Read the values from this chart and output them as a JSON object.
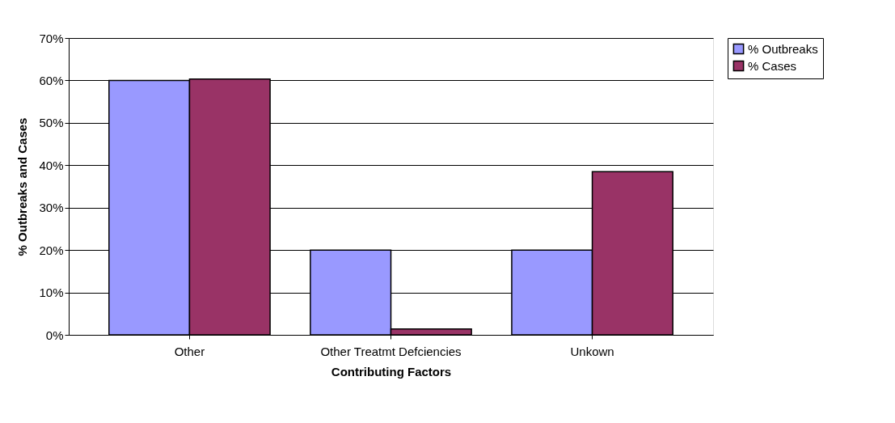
{
  "chart_data": {
    "type": "bar",
    "xlabel": "Contributing Factors",
    "ylabel": "% Outbreaks and Cases",
    "categories": [
      "Other",
      "Other Treatmt Defciencies",
      "Unkown"
    ],
    "series": [
      {
        "name": "% Outbreaks",
        "color": "#9999ff",
        "values": [
          60,
          20,
          20
        ]
      },
      {
        "name": "% Cases",
        "color": "#993366",
        "values": [
          60.3,
          1.4,
          38.5
        ]
      }
    ],
    "ylim": [
      0,
      70
    ],
    "yticks": [
      {
        "value": 0,
        "label": "0%"
      },
      {
        "value": 10,
        "label": "10%"
      },
      {
        "value": 20,
        "label": "20%"
      },
      {
        "value": 30,
        "label": "30%"
      },
      {
        "value": 40,
        "label": "40%"
      },
      {
        "value": 50,
        "label": "50%"
      },
      {
        "value": 60,
        "label": "60%"
      },
      {
        "value": 70,
        "label": "70%"
      }
    ],
    "grid": "y",
    "legend": "right"
  }
}
